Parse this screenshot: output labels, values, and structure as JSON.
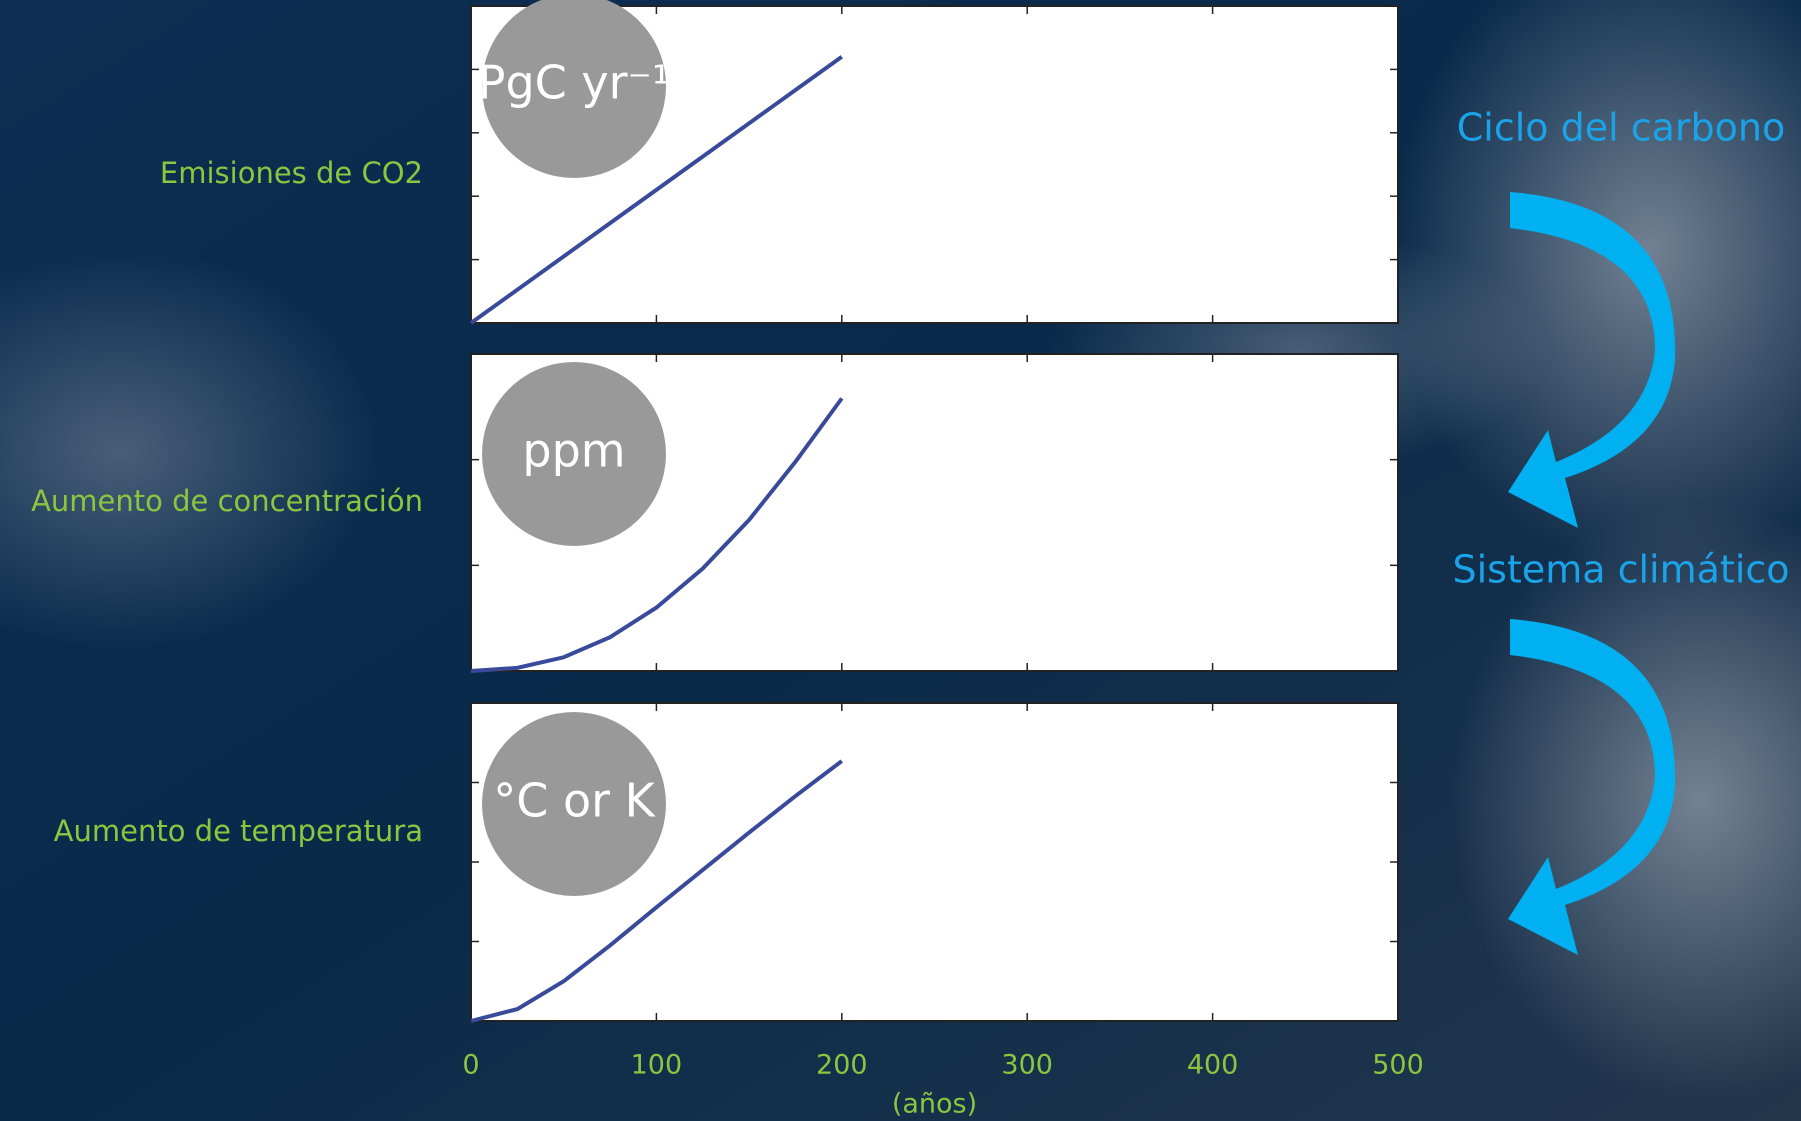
{
  "chart_data": [
    {
      "type": "line",
      "ylabel": "Emisiones de CO2",
      "unit": "PgC yr⁻¹",
      "x": [
        0,
        200
      ],
      "values": [
        0,
        4.2
      ],
      "color": "#3a4a9a",
      "xlim": [
        0,
        500
      ],
      "xticks": [
        0,
        100,
        200,
        300,
        400,
        500
      ],
      "ylim": [
        0,
        5
      ],
      "yticks": [
        1,
        2,
        3,
        4
      ]
    },
    {
      "type": "line",
      "ylabel": "Aumento de concentración",
      "unit": "ppm",
      "x": [
        0,
        25,
        50,
        75,
        100,
        125,
        150,
        175,
        200
      ],
      "values": [
        0,
        0.03,
        0.13,
        0.32,
        0.6,
        0.97,
        1.43,
        1.98,
        2.58
      ],
      "color": "#3a4a9a",
      "xlim": [
        0,
        500
      ],
      "xticks": [
        0,
        100,
        200,
        300,
        400,
        500
      ],
      "ylim": [
        0,
        3
      ],
      "yticks": [
        1,
        2
      ]
    },
    {
      "type": "line",
      "ylabel": "Aumento de temperatura",
      "unit": "°C or K",
      "x": [
        0,
        25,
        50,
        75,
        100,
        125,
        150,
        175,
        200
      ],
      "values": [
        0,
        0.15,
        0.5,
        0.95,
        1.43,
        1.9,
        2.37,
        2.83,
        3.27
      ],
      "color": "#3a4a9a",
      "xlim": [
        0,
        500
      ],
      "xticks": [
        0,
        100,
        200,
        300,
        400,
        500
      ],
      "xlabel": "(años)",
      "ylim": [
        0,
        4
      ],
      "yticks": [
        1,
        2,
        3
      ]
    }
  ],
  "annotations": [
    "Ciclo del carbono",
    "Sistema climático"
  ]
}
